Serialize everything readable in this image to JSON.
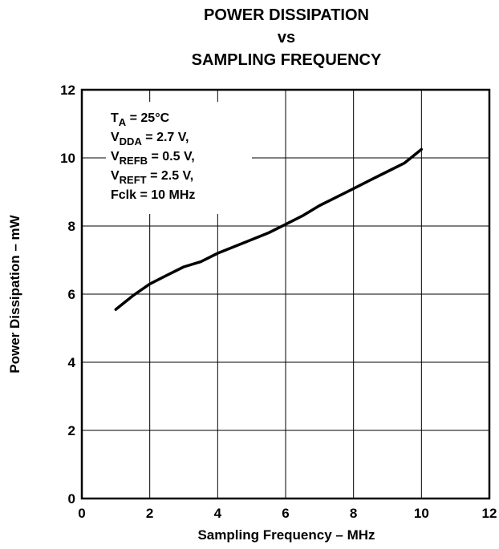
{
  "chart_data": {
    "type": "line",
    "title_lines": [
      "POWER DISSIPATION",
      "vs",
      "SAMPLING FREQUENCY"
    ],
    "xlabel": "Sampling Frequency – MHz",
    "ylabel": "Power Dissipation – mW",
    "xlim": [
      0,
      12
    ],
    "ylim": [
      0,
      12
    ],
    "x_ticks": [
      "0",
      "2",
      "4",
      "6",
      "8",
      "10",
      "12"
    ],
    "y_ticks": [
      "0",
      "2",
      "4",
      "6",
      "8",
      "10",
      "12"
    ],
    "grid": true,
    "series": [
      {
        "x": [
          1.0,
          1.5,
          2.0,
          2.5,
          3.0,
          3.5,
          4.0,
          4.5,
          5.0,
          5.5,
          6.0,
          6.5,
          7.0,
          7.5,
          8.0,
          8.5,
          9.0,
          9.5,
          10.0
        ],
        "values": [
          5.55,
          5.95,
          6.3,
          6.55,
          6.8,
          6.95,
          7.2,
          7.4,
          7.6,
          7.8,
          8.05,
          8.3,
          8.6,
          8.85,
          9.1,
          9.35,
          9.6,
          9.85,
          10.25
        ]
      }
    ],
    "annotation": {
      "position": "top-left",
      "lines": [
        {
          "main": "T",
          "sub": "A",
          "rest": " = 25°C"
        },
        {
          "main": "V",
          "sub": "DDA",
          "rest": " = 2.7 V,"
        },
        {
          "main": "V",
          "sub": "REFB",
          "rest": " = 0.5 V,"
        },
        {
          "main": "V",
          "sub": "REFT",
          "rest": " = 2.5 V,"
        },
        {
          "main": "Fclk = 10 MHz",
          "sub": "",
          "rest": ""
        }
      ]
    }
  }
}
